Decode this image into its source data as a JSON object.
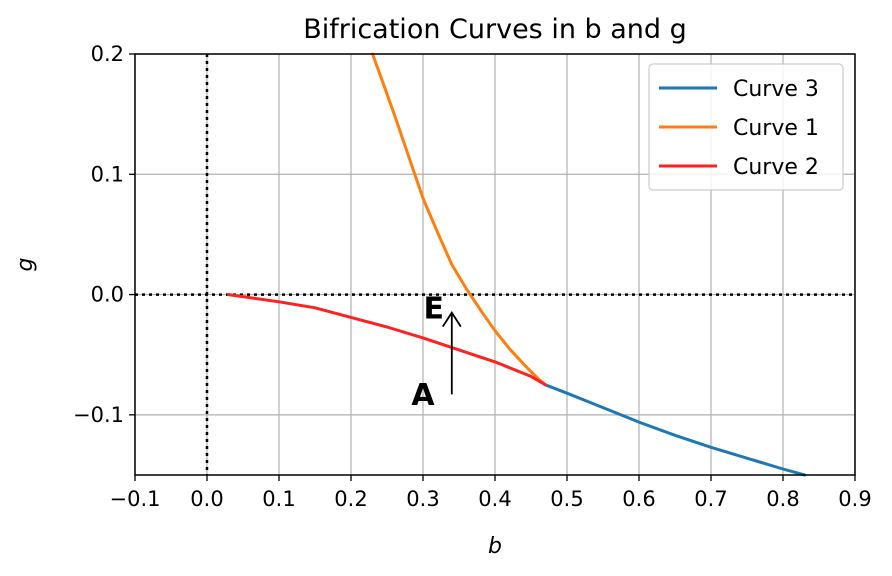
{
  "chart_data": {
    "type": "line",
    "title": "Bifrication Curves in b and g",
    "xlabel": "b",
    "ylabel": "g",
    "xlim": [
      -0.1,
      0.9
    ],
    "ylim": [
      -0.15,
      0.2
    ],
    "x_ticks": [
      -0.1,
      0.0,
      0.1,
      0.2,
      0.3,
      0.4,
      0.5,
      0.6,
      0.7,
      0.8,
      0.9
    ],
    "x_tick_labels": [
      "−0.1",
      "0.0",
      "0.1",
      "0.2",
      "0.3",
      "0.4",
      "0.5",
      "0.6",
      "0.7",
      "0.8",
      "0.9"
    ],
    "y_ticks": [
      -0.1,
      0.0,
      0.1,
      0.2
    ],
    "y_tick_labels": [
      "−0.1",
      "0.0",
      "0.1",
      "0.2"
    ],
    "grid": true,
    "legend_position": "top-right",
    "reference_lines": [
      {
        "orientation": "horizontal",
        "value": 0.0,
        "style": "dotted"
      },
      {
        "orientation": "vertical",
        "value": 0.0,
        "style": "dotted"
      }
    ],
    "series": [
      {
        "name": "Curve 3",
        "color": "#1f77b4",
        "points": [
          [
            0.47,
            -0.075
          ],
          [
            0.5,
            -0.082
          ],
          [
            0.55,
            -0.094
          ],
          [
            0.6,
            -0.106
          ],
          [
            0.65,
            -0.117
          ],
          [
            0.7,
            -0.127
          ],
          [
            0.75,
            -0.136
          ],
          [
            0.8,
            -0.145
          ],
          [
            0.83,
            -0.15
          ]
        ]
      },
      {
        "name": "Curve 1",
        "color": "#ff7f0e",
        "points": [
          [
            0.23,
            0.2
          ],
          [
            0.26,
            0.15
          ],
          [
            0.28,
            0.115
          ],
          [
            0.3,
            0.08
          ],
          [
            0.32,
            0.052
          ],
          [
            0.34,
            0.025
          ],
          [
            0.36,
            0.005
          ],
          [
            0.38,
            -0.013
          ],
          [
            0.4,
            -0.03
          ],
          [
            0.42,
            -0.045
          ],
          [
            0.44,
            -0.058
          ],
          [
            0.46,
            -0.07
          ],
          [
            0.47,
            -0.075
          ]
        ]
      },
      {
        "name": "Curve 2",
        "color": "#ff2020",
        "points": [
          [
            0.03,
            0.0
          ],
          [
            0.1,
            -0.006
          ],
          [
            0.15,
            -0.011
          ],
          [
            0.2,
            -0.019
          ],
          [
            0.25,
            -0.027
          ],
          [
            0.3,
            -0.036
          ],
          [
            0.35,
            -0.046
          ],
          [
            0.4,
            -0.056
          ],
          [
            0.45,
            -0.068
          ],
          [
            0.47,
            -0.075
          ]
        ]
      }
    ],
    "annotations": [
      {
        "text": "E",
        "x": 0.315,
        "y": -0.02
      },
      {
        "text": "A",
        "x": 0.3,
        "y": -0.092
      },
      {
        "text": "",
        "type": "arrow",
        "from": [
          0.34,
          -0.083
        ],
        "to": [
          0.34,
          -0.015
        ]
      }
    ]
  }
}
